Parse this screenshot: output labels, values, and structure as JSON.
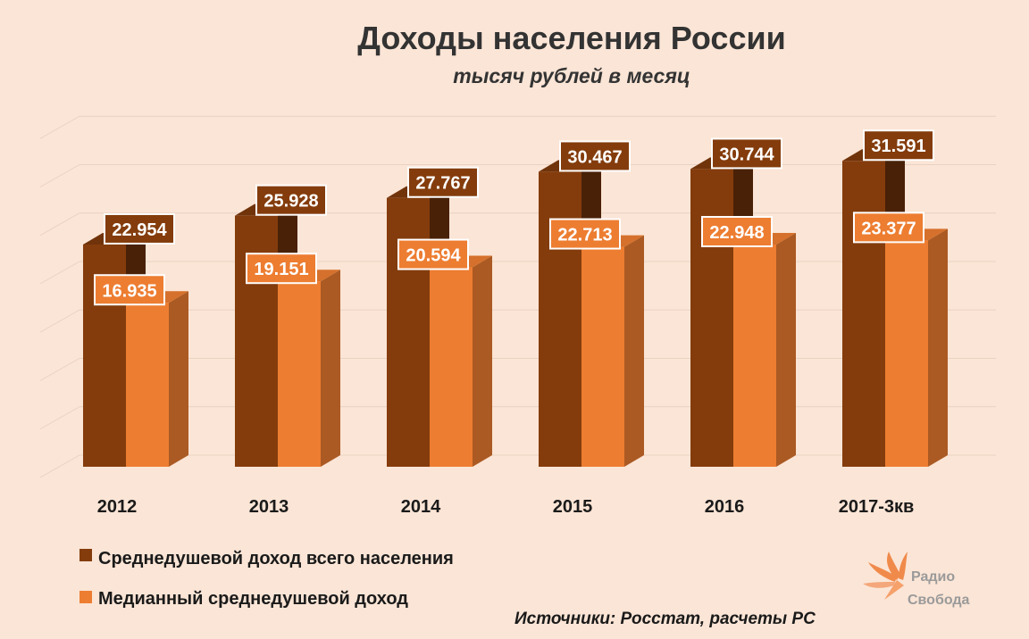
{
  "chart_data": {
    "type": "bar",
    "title": "Доходы населения России",
    "subtitle": "тысяч рублей в месяц",
    "categories": [
      "2012",
      "2013",
      "2014",
      "2015",
      "2016",
      "2017-3кв"
    ],
    "series": [
      {
        "name": "Среднедушевой доход всего населения",
        "values": [
          22.954,
          25.928,
          27.767,
          30.467,
          30.744,
          31.591
        ],
        "labels": [
          "22.954",
          "25.928",
          "27.767",
          "30.467",
          "30.744",
          "31.591"
        ],
        "color": "#843c0c"
      },
      {
        "name": "Медианный среднедушевой доход",
        "values": [
          16.935,
          19.151,
          20.594,
          22.713,
          22.948,
          23.377
        ],
        "labels": [
          "16.935",
          "19.151",
          "20.594",
          "22.713",
          "22.948",
          "23.377"
        ],
        "color": "#ed7d31"
      }
    ],
    "ylim": [
      0,
      35
    ],
    "grid": true,
    "legend_position": "bottom-left",
    "style": "3d-column"
  },
  "source": "Источники:  Росстат,  расчеты  РС",
  "logo": {
    "line1": "Радио",
    "line2": "Свобода",
    "icon": "torch-flame-icon"
  }
}
